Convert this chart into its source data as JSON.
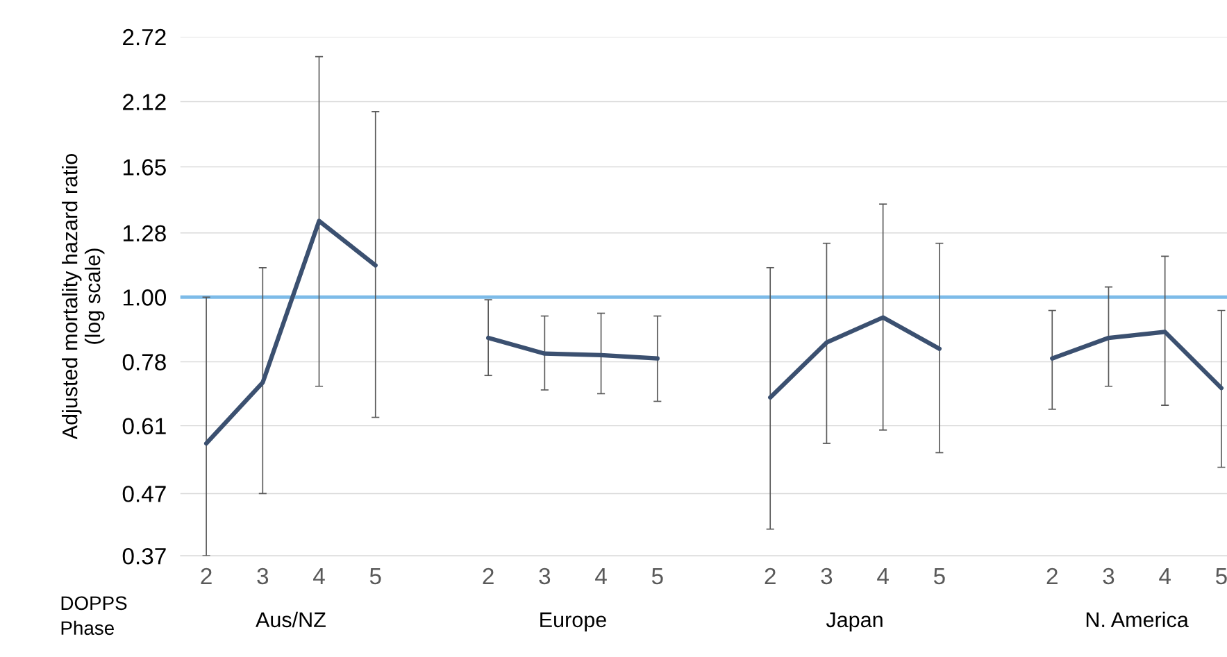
{
  "chart_data": {
    "type": "line",
    "ylabel": "Adjusted mortality hazard ratio\n(log scale)",
    "xlabel": "DOPPS\nPhase",
    "categories": [
      "2",
      "3",
      "4",
      "5",
      null,
      "2",
      "3",
      "4",
      "5",
      null,
      "2",
      "3",
      "4",
      "5",
      null,
      "2",
      "3",
      "4",
      "5"
    ],
    "series": [
      {
        "color": "#3b5070",
        "values": [
          0.57,
          0.72,
          1.34,
          1.13,
          null,
          0.855,
          0.805,
          0.8,
          0.79,
          null,
          0.68,
          0.84,
          0.925,
          0.82,
          null,
          0.79,
          0.855,
          0.875,
          0.705
        ],
        "errors": [
          [
            0.37,
            1.0
          ],
          [
            0.47,
            1.12
          ],
          [
            0.71,
            2.52
          ],
          [
            0.63,
            2.04
          ],
          null,
          [
            0.74,
            0.99
          ],
          [
            0.7,
            0.93
          ],
          [
            0.69,
            0.94
          ],
          [
            0.67,
            0.93
          ],
          null,
          [
            0.41,
            1.12
          ],
          [
            0.57,
            1.23
          ],
          [
            0.6,
            1.43
          ],
          [
            0.55,
            1.23
          ],
          null,
          [
            0.65,
            0.95
          ],
          [
            0.71,
            1.04
          ],
          [
            0.66,
            1.17
          ],
          [
            0.52,
            0.95
          ]
        ]
      }
    ],
    "annotations": [
      "Aus/NZ",
      "Europe",
      "Japan",
      "N. America"
    ],
    "ref_lines": [
      {
        "axis": "y",
        "value": 1.0,
        "color": "#7dbbe8"
      }
    ],
    "log": "y",
    "ylim": [
      0.37,
      2.72
    ],
    "yticks": [
      0.37,
      0.47,
      "0.61",
      0.78,
      {
        "value": 1.0,
        "label": "1.00"
      },
      1.28,
      1.65,
      2.12,
      2.72
    ],
    "grid": "y",
    "marker": "none",
    "line_style": "solid"
  }
}
